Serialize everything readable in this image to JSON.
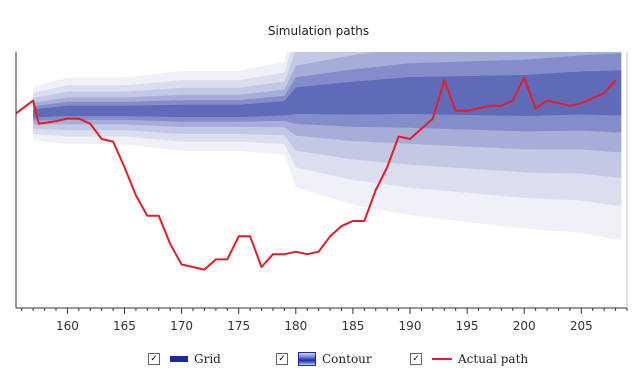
{
  "title": "Simulation paths",
  "legend": {
    "checkbox_mark": "✓",
    "grid_label": "Grid",
    "contour_label": "Contour",
    "actual_label": "Actual path"
  },
  "colors": {
    "density": "#1a2a9a",
    "actual_path": "#e41d27",
    "axis": "#333333"
  },
  "chart_data": {
    "type": "line",
    "title": "Simulation paths",
    "xlabel": "",
    "ylabel": "",
    "xlim": [
      155.5,
      209
    ],
    "ylim": [
      0,
      100
    ],
    "x_ticks": [
      160,
      165,
      170,
      175,
      180,
      185,
      190,
      195,
      200,
      205
    ],
    "y_ticks_shown": false,
    "grid": false,
    "legend_position": "bottom",
    "series": [
      {
        "name": "Actual path",
        "x": [
          155.5,
          157.0,
          157.5,
          159.0,
          160.0,
          161.0,
          162.0,
          163.0,
          164.0,
          165.0,
          166.0,
          167.0,
          168.0,
          169.0,
          170.0,
          171.0,
          172.0,
          173.0,
          174.0,
          175.0,
          176.0,
          177.0,
          178.0,
          179.0,
          180.0,
          181.0,
          182.0,
          183.0,
          184.0,
          185.0,
          186.0,
          187.0,
          188.0,
          189.0,
          190.0,
          191.0,
          192.0,
          193.0,
          194.0,
          195.0,
          196.0,
          197.0,
          198.0,
          199.0,
          200.0,
          201.0,
          202.0,
          203.0,
          204.0,
          205.0,
          206.0,
          207.0,
          208.0
        ],
        "values": [
          76,
          81,
          72,
          73,
          74,
          74,
          72,
          66,
          65,
          55,
          44,
          36,
          36,
          25,
          17,
          16,
          15,
          19,
          19,
          28,
          28,
          16,
          21,
          21,
          22,
          21,
          22,
          28,
          32,
          34,
          34,
          46,
          55,
          67,
          66,
          70,
          74,
          89,
          77,
          77,
          78,
          79,
          79,
          81,
          90,
          78,
          81,
          80,
          79,
          80,
          82,
          84,
          89
        ]
      }
    ],
    "density": {
      "name": "Contour",
      "description_free": true,
      "center": [
        [
          157,
          76
        ],
        [
          160,
          77
        ],
        [
          165,
          77
        ],
        [
          170,
          77
        ],
        [
          175,
          77
        ],
        [
          179,
          78
        ],
        [
          180,
          81
        ],
        [
          185,
          82
        ],
        [
          190,
          83
        ],
        [
          195,
          83
        ],
        [
          200,
          83
        ],
        [
          205,
          84
        ],
        [
          208,
          84
        ]
      ],
      "spread": [
        [
          157,
          4
        ],
        [
          160,
          5
        ],
        [
          165,
          5
        ],
        [
          170,
          6
        ],
        [
          175,
          6
        ],
        [
          179,
          7
        ],
        [
          180,
          13
        ],
        [
          185,
          16
        ],
        [
          190,
          18
        ],
        [
          195,
          19
        ],
        [
          200,
          20
        ],
        [
          205,
          21
        ],
        [
          208,
          22
        ]
      ]
    }
  }
}
